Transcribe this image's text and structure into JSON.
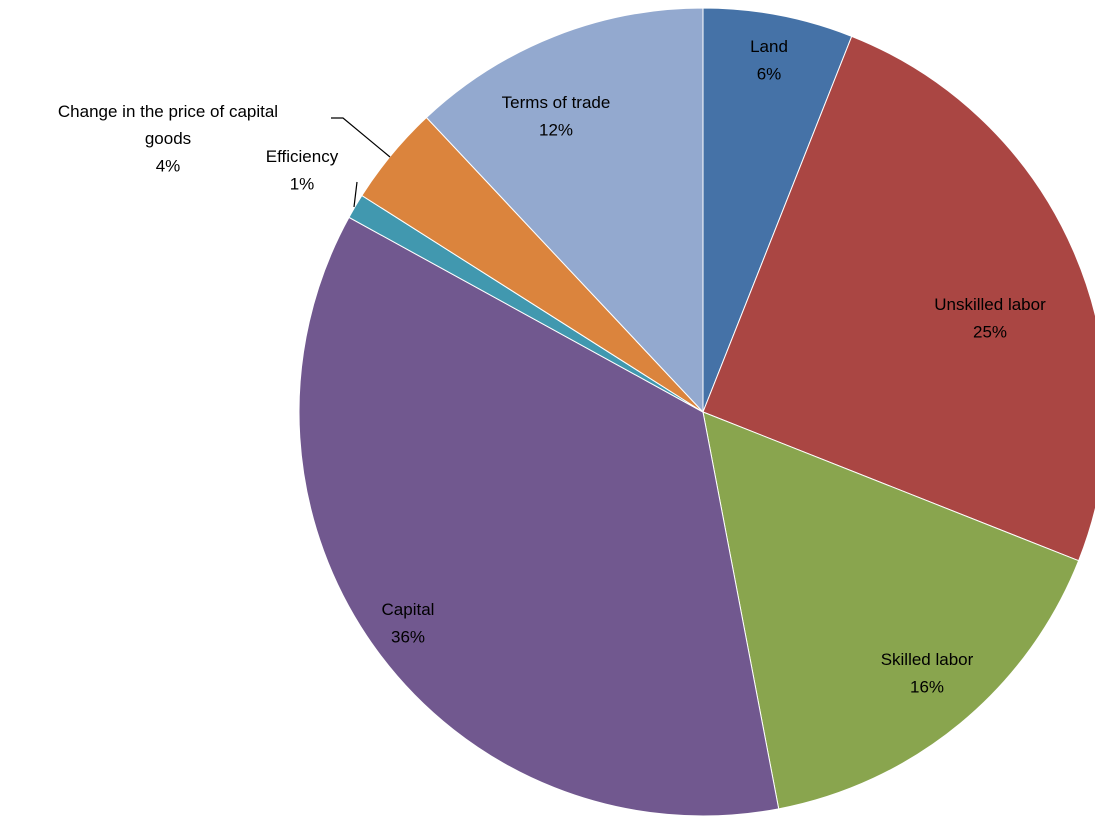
{
  "chart_data": {
    "type": "pie",
    "categories": [
      "Land",
      "Unskilled labor",
      "Skilled labor",
      "Capital",
      "Efficiency",
      "Change in the price of capital goods",
      "Terms of trade"
    ],
    "values": [
      6,
      25,
      16,
      36,
      1,
      4,
      12
    ],
    "value_labels": [
      "6%",
      "25%",
      "16%",
      "36%",
      "1%",
      "4%",
      "12%"
    ],
    "colors": [
      "#4572a7",
      "#aa4643",
      "#89a54e",
      "#71588f",
      "#4198af",
      "#db843d",
      "#93a9cf"
    ]
  }
}
